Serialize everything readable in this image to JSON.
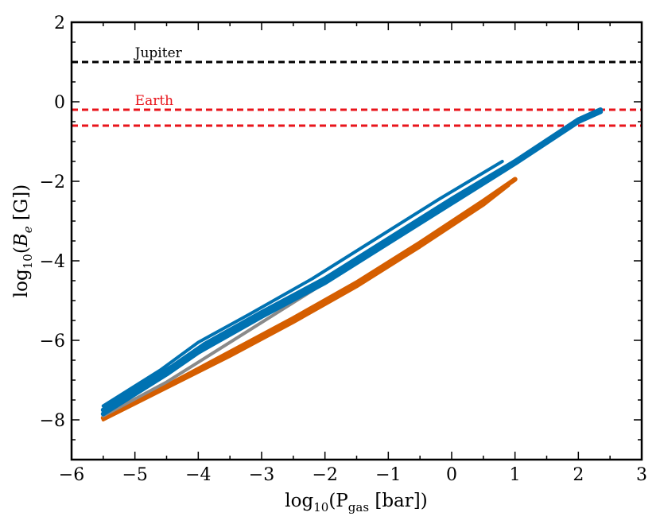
{
  "chart_data": {
    "type": "line",
    "xlabel": {
      "main": "log",
      "sub": "10",
      "rest": "(P",
      "sub2": "gas",
      "tail": " [bar])"
    },
    "ylabel": {
      "main": "log",
      "sub": "10",
      "rest": "(",
      "var": "B",
      "varsub": "e",
      "tail": " [G])"
    },
    "xlim": [
      -6,
      3
    ],
    "ylim": [
      -9,
      2
    ],
    "xticks": [
      -6,
      -5,
      -4,
      -3,
      -2,
      -1,
      0,
      1,
      2,
      3
    ],
    "yticks": [
      -8,
      -6,
      -4,
      -2,
      0,
      2
    ],
    "xtick_labels": [
      "−6",
      "−5",
      "−4",
      "−3",
      "−2",
      "−1",
      "0",
      "1",
      "2",
      "3"
    ],
    "ytick_labels": [
      "−8",
      "−6",
      "−4",
      "−2",
      "0",
      "2"
    ],
    "reference_lines": [
      {
        "label": "Jupiter",
        "y": 1.0,
        "color": "#000000",
        "label_x": -5.0
      },
      {
        "label": "Earth",
        "y": -0.2,
        "color": "#e8141b",
        "label_x": -5.0
      },
      {
        "y": -0.6,
        "color": "#e8141b"
      }
    ],
    "series": [
      {
        "color": "#d55e00",
        "width": 6,
        "x": [
          -5.5,
          -4.5,
          -3.5,
          -2.5,
          -1.5,
          -0.5,
          0.5,
          1.0
        ],
        "y": [
          -7.95,
          -7.15,
          -6.3,
          -5.45,
          -4.55,
          -3.55,
          -2.5,
          -1.95
        ]
      },
      {
        "color": "#d55e00",
        "width": 4,
        "x": [
          -5.5,
          -4.5,
          -3.5,
          -2.5,
          -1.5,
          -0.5,
          0.5,
          0.9
        ],
        "y": [
          -8.0,
          -7.2,
          -6.4,
          -5.55,
          -4.65,
          -3.65,
          -2.6,
          -2.1
        ]
      },
      {
        "color": "#8a8a8a",
        "width": 4,
        "x": [
          -5.5,
          -4.5,
          -3.8,
          -3.0,
          -2.0,
          -1.0,
          0.0,
          0.8
        ],
        "y": [
          -7.9,
          -7.05,
          -6.35,
          -5.55,
          -4.55,
          -3.5,
          -2.45,
          -1.7
        ]
      },
      {
        "color": "#0072b2",
        "width": 6,
        "x": [
          -5.5,
          -4.4,
          -3.9,
          -3.0,
          -2.0,
          -1.0,
          0.0,
          1.0,
          2.0,
          2.35
        ],
        "y": [
          -7.75,
          -6.65,
          -6.1,
          -5.3,
          -4.45,
          -3.45,
          -2.45,
          -1.5,
          -0.45,
          -0.2
        ]
      },
      {
        "color": "#0072b2",
        "width": 6,
        "x": [
          -5.5,
          -4.5,
          -4.0,
          -3.0,
          -2.0,
          -1.0,
          0.0,
          1.0,
          2.0,
          2.35
        ],
        "y": [
          -7.85,
          -6.85,
          -6.3,
          -5.4,
          -4.55,
          -3.55,
          -2.55,
          -1.55,
          -0.5,
          -0.25
        ]
      },
      {
        "color": "#0072b2",
        "width": 4,
        "x": [
          -5.5,
          -4.6,
          -4.0,
          -3.2,
          -2.2,
          -1.2,
          -0.2,
          0.8
        ],
        "y": [
          -7.65,
          -6.75,
          -6.05,
          -5.35,
          -4.45,
          -3.45,
          -2.45,
          -1.5
        ]
      }
    ]
  }
}
